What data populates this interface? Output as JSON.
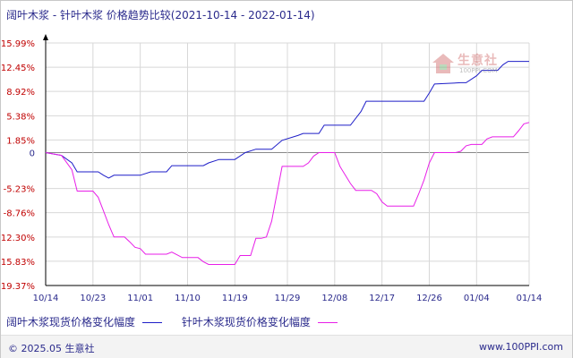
{
  "title": "阔叶木浆 - 针叶木浆 价格趋势比较(2021-10-14 - 2022-01-14)",
  "watermark": {
    "text": "生意社",
    "sub": "100PPI.COM"
  },
  "footer": {
    "copyright": "© 2025.05 生意社",
    "site": "www.100PPI.com"
  },
  "colors": {
    "series1": "#1e1ec8",
    "series2": "#e81ee8",
    "axis": "#000000",
    "grid": "#d8d8d8",
    "ytick": "#c00000",
    "xtick": "#2a2a8c"
  },
  "chart_data": {
    "type": "line",
    "ylim": [
      -19.37,
      15.99
    ],
    "grid": "vertical and horizontal",
    "legend_position": "bottom",
    "yticks": [
      15.99,
      12.45,
      8.92,
      5.38,
      1.85,
      0,
      -5.23,
      -8.76,
      -12.3,
      -15.83,
      -19.37
    ],
    "ytick_labels": [
      "15.99%",
      "12.45%",
      "8.92%",
      "5.38%",
      "1.85%",
      "0",
      "-5.23%",
      "-8.76%",
      "-12.30%",
      "-15.83%",
      "-19.37%"
    ],
    "x_start": "2021-10-14",
    "x_end": "2022-01-14",
    "xticks": [
      "2021-10-14",
      "2021-10-23",
      "2021-11-01",
      "2021-11-10",
      "2021-11-19",
      "2021-11-29",
      "2021-12-08",
      "2021-12-17",
      "2021-12-26",
      "2022-01-04",
      "2022-01-14"
    ],
    "xtick_labels": [
      "10/14",
      "10/23",
      "11/01",
      "11/10",
      "11/19",
      "11/29",
      "12/08",
      "12/17",
      "12/26",
      "01/04",
      "01/14"
    ],
    "series": [
      {
        "name": "阔叶木浆现货价格变化幅度",
        "color": "#1e1ec8",
        "points": [
          [
            "2021-10-14",
            0
          ],
          [
            "2021-10-17",
            -0.4
          ],
          [
            "2021-10-19",
            -1.5
          ],
          [
            "2021-10-20",
            -2.8
          ],
          [
            "2021-10-24",
            -2.8
          ],
          [
            "2021-10-25",
            -3.3
          ],
          [
            "2021-10-26",
            -3.7
          ],
          [
            "2021-10-27",
            -3.3
          ],
          [
            "2021-11-01",
            -3.3
          ],
          [
            "2021-11-03",
            -2.8
          ],
          [
            "2021-11-06",
            -2.8
          ],
          [
            "2021-11-07",
            -1.9
          ],
          [
            "2021-11-13",
            -1.9
          ],
          [
            "2021-11-14",
            -1.5
          ],
          [
            "2021-11-16",
            -1.0
          ],
          [
            "2021-11-19",
            -1.0
          ],
          [
            "2021-11-21",
            0
          ],
          [
            "2021-11-23",
            0.5
          ],
          [
            "2021-11-26",
            0.5
          ],
          [
            "2021-11-28",
            1.8
          ],
          [
            "2021-12-01",
            2.5
          ],
          [
            "2021-12-02",
            2.8
          ],
          [
            "2021-12-05",
            2.8
          ],
          [
            "2021-12-06",
            4.0
          ],
          [
            "2021-12-11",
            4.0
          ],
          [
            "2021-12-13",
            6.0
          ],
          [
            "2021-12-14",
            7.5
          ],
          [
            "2021-12-25",
            7.5
          ],
          [
            "2021-12-26",
            8.7
          ],
          [
            "2021-12-27",
            10.0
          ],
          [
            "2022-01-01",
            10.2
          ],
          [
            "2022-01-02",
            10.2
          ],
          [
            "2022-01-04",
            11.2
          ],
          [
            "2022-01-05",
            12.0
          ],
          [
            "2022-01-08",
            12.0
          ],
          [
            "2022-01-09",
            12.8
          ],
          [
            "2022-01-10",
            13.3
          ],
          [
            "2022-01-14",
            13.3
          ]
        ]
      },
      {
        "name": "针叶木浆现货价格变化幅度",
        "color": "#e81ee8",
        "points": [
          [
            "2021-10-14",
            0
          ],
          [
            "2021-10-17",
            -0.4
          ],
          [
            "2021-10-19",
            -2.5
          ],
          [
            "2021-10-20",
            -5.6
          ],
          [
            "2021-10-23",
            -5.6
          ],
          [
            "2021-10-24",
            -6.5
          ],
          [
            "2021-10-25",
            -8.5
          ],
          [
            "2021-10-26",
            -10.5
          ],
          [
            "2021-10-27",
            -12.3
          ],
          [
            "2021-10-29",
            -12.3
          ],
          [
            "2021-10-30",
            -13.0
          ],
          [
            "2021-10-31",
            -13.8
          ],
          [
            "2021-11-01",
            -14.0
          ],
          [
            "2021-11-02",
            -14.8
          ],
          [
            "2021-11-06",
            -14.8
          ],
          [
            "2021-11-07",
            -14.5
          ],
          [
            "2021-11-08",
            -14.9
          ],
          [
            "2021-11-09",
            -15.3
          ],
          [
            "2021-11-12",
            -15.3
          ],
          [
            "2021-11-13",
            -15.9
          ],
          [
            "2021-11-14",
            -16.3
          ],
          [
            "2021-11-19",
            -16.3
          ],
          [
            "2021-11-20",
            -15.0
          ],
          [
            "2021-11-22",
            -15.0
          ],
          [
            "2021-11-23",
            -12.5
          ],
          [
            "2021-11-24",
            -12.5
          ],
          [
            "2021-11-25",
            -12.3
          ],
          [
            "2021-11-26",
            -10.0
          ],
          [
            "2021-11-27",
            -6.0
          ],
          [
            "2021-11-28",
            -2.0
          ],
          [
            "2021-12-02",
            -2.0
          ],
          [
            "2021-12-03",
            -1.5
          ],
          [
            "2021-12-04",
            -0.5
          ],
          [
            "2021-12-05",
            0
          ],
          [
            "2021-12-08",
            0
          ],
          [
            "2021-12-09",
            -2.0
          ],
          [
            "2021-12-11",
            -4.5
          ],
          [
            "2021-12-12",
            -5.5
          ],
          [
            "2021-12-15",
            -5.5
          ],
          [
            "2021-12-16",
            -6.0
          ],
          [
            "2021-12-17",
            -7.2
          ],
          [
            "2021-12-18",
            -7.8
          ],
          [
            "2021-12-23",
            -7.8
          ],
          [
            "2021-12-24",
            -6.0
          ],
          [
            "2021-12-25",
            -4.0
          ],
          [
            "2021-12-26",
            -1.5
          ],
          [
            "2021-12-27",
            0
          ],
          [
            "2021-12-31",
            0
          ],
          [
            "2022-01-01",
            0.2
          ],
          [
            "2022-01-02",
            1.0
          ],
          [
            "2022-01-03",
            1.2
          ],
          [
            "2022-01-05",
            1.2
          ],
          [
            "2022-01-06",
            2.0
          ],
          [
            "2022-01-07",
            2.3
          ],
          [
            "2022-01-11",
            2.3
          ],
          [
            "2022-01-12",
            3.2
          ],
          [
            "2022-01-13",
            4.2
          ],
          [
            "2022-01-14",
            4.4
          ]
        ]
      }
    ]
  }
}
